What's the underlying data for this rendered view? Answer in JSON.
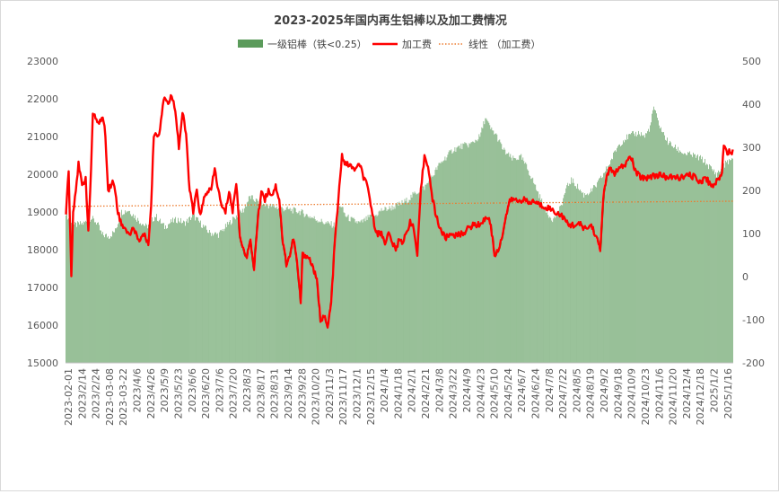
{
  "chart_data": {
    "type": "bar",
    "title": "2023-2025年国内再生铝棒以及加工费情况",
    "legend_position": "top",
    "grid": false,
    "colors": {
      "bars": "#5B9B5B",
      "line": "#FF0000",
      "trend": "#ED7D31"
    },
    "x_tick_labels": [
      "2023-02-01",
      "2023/2/14",
      "2023/2/24",
      "2023-03-08",
      "2023-03-22",
      "2023/4/6",
      "2023/4/26",
      "2023/5/9",
      "2023/5/23",
      "2023/6/6",
      "2023/6/20",
      "2023/7/6",
      "2023/7/20",
      "2023/8/3",
      "2023/8/17",
      "2023/8/31",
      "2023/9/14",
      "2023/9/28",
      "2023/10/20",
      "2023/11/3",
      "2023/11/17",
      "2023/12/1",
      "2023/12/15",
      "2024/1/4",
      "2024/1/18",
      "2024/2/1",
      "2024/2/21",
      "2024/3/8",
      "2024/3/22",
      "2024/4/9",
      "2024/4/23",
      "2024/5/10",
      "2024/5/24",
      "2024/6/7",
      "2024/6/24",
      "2024/7/8",
      "2024/7/22",
      "2024/8/5",
      "2024/8/19",
      "2024/9/2",
      "2024/9/18",
      "2024/10/9",
      "2024/10/23",
      "2024/11/6",
      "2024/11/20",
      "2024/12/4",
      "2024/12/18",
      "2025/1/2",
      "2025/1/16"
    ],
    "y_left": {
      "min": 15000,
      "max": 23000,
      "ticks": [
        15000,
        16000,
        17000,
        18000,
        19000,
        20000,
        21000,
        22000,
        23000
      ]
    },
    "y_right": {
      "min": -200,
      "max": 500,
      "ticks": [
        -200,
        -100,
        0,
        100,
        200,
        300,
        400,
        500
      ]
    },
    "series": [
      {
        "name": "一级铝棒（铁<0.25）",
        "type": "bar",
        "axis": "left",
        "anchors": [
          [
            0,
            19000
          ],
          [
            5,
            18700
          ],
          [
            10,
            18650
          ],
          [
            20,
            18700
          ],
          [
            28,
            18850
          ],
          [
            35,
            18700
          ],
          [
            40,
            18400
          ],
          [
            48,
            18350
          ],
          [
            55,
            18500
          ],
          [
            62,
            19000
          ],
          [
            70,
            19050
          ],
          [
            80,
            18800
          ],
          [
            90,
            18600
          ],
          [
            100,
            18900
          ],
          [
            110,
            18600
          ],
          [
            118,
            18750
          ],
          [
            125,
            18800
          ],
          [
            132,
            18700
          ],
          [
            142,
            18900
          ],
          [
            150,
            18700
          ],
          [
            160,
            18450
          ],
          [
            170,
            18400
          ],
          [
            178,
            18600
          ],
          [
            188,
            18850
          ],
          [
            198,
            19050
          ],
          [
            205,
            19400
          ],
          [
            212,
            19300
          ],
          [
            220,
            19200
          ],
          [
            230,
            19150
          ],
          [
            240,
            19100
          ],
          [
            252,
            19050
          ],
          [
            262,
            19000
          ],
          [
            270,
            18900
          ],
          [
            280,
            18800
          ],
          [
            290,
            18700
          ],
          [
            300,
            18650
          ],
          [
            306,
            19200
          ],
          [
            312,
            18900
          ],
          [
            318,
            18800
          ],
          [
            328,
            18700
          ],
          [
            338,
            18850
          ],
          [
            345,
            18900
          ],
          [
            352,
            19050
          ],
          [
            362,
            19100
          ],
          [
            372,
            19200
          ],
          [
            380,
            19300
          ],
          [
            390,
            19500
          ],
          [
            400,
            19650
          ],
          [
            408,
            19900
          ],
          [
            415,
            20200
          ],
          [
            422,
            20400
          ],
          [
            432,
            20650
          ],
          [
            442,
            20750
          ],
          [
            452,
            20800
          ],
          [
            462,
            21000
          ],
          [
            468,
            21500
          ],
          [
            474,
            21200
          ],
          [
            480,
            21050
          ],
          [
            488,
            20650
          ],
          [
            498,
            20400
          ],
          [
            508,
            20450
          ],
          [
            514,
            20200
          ],
          [
            520,
            19900
          ],
          [
            528,
            19450
          ],
          [
            536,
            19000
          ],
          [
            544,
            18800
          ],
          [
            552,
            19100
          ],
          [
            558,
            19600
          ],
          [
            564,
            19850
          ],
          [
            570,
            19700
          ],
          [
            578,
            19450
          ],
          [
            586,
            19550
          ],
          [
            592,
            19700
          ],
          [
            600,
            20000
          ],
          [
            608,
            20350
          ],
          [
            616,
            20750
          ],
          [
            624,
            20950
          ],
          [
            632,
            21050
          ],
          [
            640,
            21100
          ],
          [
            646,
            21000
          ],
          [
            652,
            21250
          ],
          [
            656,
            21800
          ],
          [
            660,
            21450
          ],
          [
            666,
            21100
          ],
          [
            672,
            20850
          ],
          [
            680,
            20700
          ],
          [
            690,
            20550
          ],
          [
            700,
            20500
          ],
          [
            710,
            20400
          ],
          [
            718,
            20200
          ],
          [
            726,
            20000
          ],
          [
            732,
            20150
          ],
          [
            738,
            20350
          ],
          [
            744,
            20350
          ]
        ],
        "count": 745
      },
      {
        "name": "加工费",
        "type": "line",
        "axis": "right",
        "anchors": [
          [
            0,
            150
          ],
          [
            3,
            250
          ],
          [
            6,
            0
          ],
          [
            8,
            150
          ],
          [
            14,
            260
          ],
          [
            18,
            210
          ],
          [
            22,
            230
          ],
          [
            25,
            100
          ],
          [
            28,
            250
          ],
          [
            30,
            380
          ],
          [
            34,
            360
          ],
          [
            38,
            360
          ],
          [
            41,
            370
          ],
          [
            44,
            330
          ],
          [
            47,
            200
          ],
          [
            52,
            220
          ],
          [
            55,
            200
          ],
          [
            58,
            150
          ],
          [
            62,
            120
          ],
          [
            66,
            115
          ],
          [
            70,
            95
          ],
          [
            74,
            110
          ],
          [
            78,
            105
          ],
          [
            82,
            80
          ],
          [
            86,
            100
          ],
          [
            92,
            80
          ],
          [
            95,
            160
          ],
          [
            98,
            330
          ],
          [
            104,
            330
          ],
          [
            108,
            400
          ],
          [
            110,
            420
          ],
          [
            114,
            400
          ],
          [
            118,
            420
          ],
          [
            122,
            390
          ],
          [
            126,
            300
          ],
          [
            130,
            380
          ],
          [
            134,
            330
          ],
          [
            138,
            200
          ],
          [
            142,
            150
          ],
          [
            146,
            200
          ],
          [
            150,
            140
          ],
          [
            154,
            180
          ],
          [
            158,
            200
          ],
          [
            162,
            200
          ],
          [
            166,
            250
          ],
          [
            170,
            200
          ],
          [
            174,
            160
          ],
          [
            178,
            150
          ],
          [
            182,
            200
          ],
          [
            186,
            150
          ],
          [
            190,
            220
          ],
          [
            194,
            100
          ],
          [
            198,
            60
          ],
          [
            202,
            50
          ],
          [
            206,
            80
          ],
          [
            210,
            20
          ],
          [
            214,
            130
          ],
          [
            218,
            200
          ],
          [
            222,
            180
          ],
          [
            226,
            200
          ],
          [
            230,
            190
          ],
          [
            234,
            210
          ],
          [
            238,
            180
          ],
          [
            242,
            80
          ],
          [
            246,
            30
          ],
          [
            250,
            50
          ],
          [
            254,
            90
          ],
          [
            258,
            30
          ],
          [
            262,
            -60
          ],
          [
            264,
            50
          ],
          [
            268,
            50
          ],
          [
            272,
            40
          ],
          [
            276,
            20
          ],
          [
            280,
            -10
          ],
          [
            284,
            -100
          ],
          [
            288,
            -90
          ],
          [
            292,
            -120
          ],
          [
            296,
            -60
          ],
          [
            300,
            80
          ],
          [
            304,
            180
          ],
          [
            308,
            280
          ],
          [
            312,
            260
          ],
          [
            316,
            260
          ],
          [
            320,
            250
          ],
          [
            324,
            250
          ],
          [
            328,
            260
          ],
          [
            332,
            230
          ],
          [
            336,
            210
          ],
          [
            340,
            170
          ],
          [
            344,
            120
          ],
          [
            348,
            100
          ],
          [
            352,
            100
          ],
          [
            356,
            80
          ],
          [
            360,
            100
          ],
          [
            364,
            80
          ],
          [
            368,
            60
          ],
          [
            372,
            90
          ],
          [
            376,
            80
          ],
          [
            380,
            100
          ],
          [
            384,
            130
          ],
          [
            388,
            110
          ],
          [
            392,
            50
          ],
          [
            396,
            200
          ],
          [
            400,
            280
          ],
          [
            404,
            260
          ],
          [
            408,
            190
          ],
          [
            412,
            150
          ],
          [
            416,
            120
          ],
          [
            420,
            100
          ],
          [
            424,
            90
          ],
          [
            430,
            100
          ],
          [
            436,
            95
          ],
          [
            442,
            100
          ],
          [
            448,
            110
          ],
          [
            454,
            120
          ],
          [
            460,
            120
          ],
          [
            466,
            130
          ],
          [
            470,
            140
          ],
          [
            474,
            120
          ],
          [
            478,
            50
          ],
          [
            482,
            60
          ],
          [
            486,
            90
          ],
          [
            490,
            130
          ],
          [
            494,
            170
          ],
          [
            498,
            180
          ],
          [
            504,
            175
          ],
          [
            510,
            180
          ],
          [
            516,
            170
          ],
          [
            522,
            175
          ],
          [
            530,
            165
          ],
          [
            538,
            160
          ],
          [
            546,
            150
          ],
          [
            554,
            140
          ],
          [
            560,
            120
          ],
          [
            566,
            120
          ],
          [
            574,
            120
          ],
          [
            580,
            110
          ],
          [
            586,
            120
          ],
          [
            592,
            90
          ],
          [
            596,
            60
          ],
          [
            600,
            200
          ],
          [
            606,
            250
          ],
          [
            612,
            240
          ],
          [
            618,
            250
          ],
          [
            624,
            260
          ],
          [
            630,
            280
          ],
          [
            636,
            240
          ],
          [
            642,
            230
          ],
          [
            648,
            230
          ],
          [
            656,
            235
          ],
          [
            664,
            235
          ],
          [
            672,
            230
          ],
          [
            680,
            230
          ],
          [
            688,
            230
          ],
          [
            696,
            235
          ],
          [
            702,
            230
          ],
          [
            708,
            220
          ],
          [
            714,
            230
          ],
          [
            720,
            210
          ],
          [
            726,
            220
          ],
          [
            732,
            240
          ],
          [
            734,
            310
          ],
          [
            738,
            290
          ],
          [
            744,
            290
          ]
        ],
        "count": 745
      },
      {
        "name": "线性 （加工费）",
        "type": "trendline",
        "axis": "right",
        "start": 163,
        "end": 175
      }
    ]
  }
}
